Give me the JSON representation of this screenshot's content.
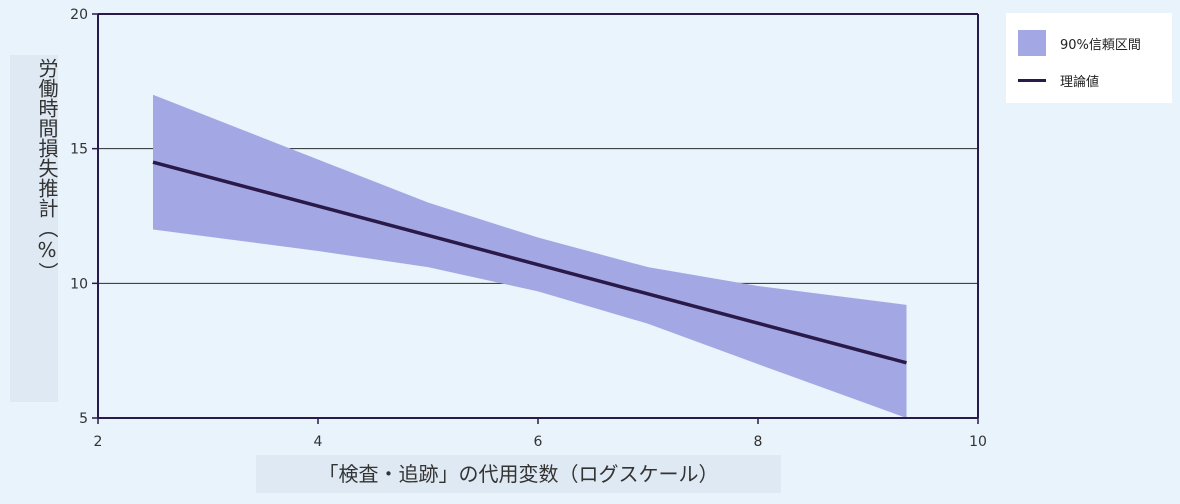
{
  "chart_data": {
    "type": "line",
    "title": "",
    "xlabel": "「検査・追跡」の代用変数（ログスケール）",
    "ylabel": "労働時間損失推計（%）",
    "xlim": [
      2,
      10
    ],
    "ylim": [
      5,
      20
    ],
    "x_ticks": [
      "2",
      "4",
      "6",
      "8",
      "10"
    ],
    "y_ticks": [
      "5",
      "10",
      "15",
      "20"
    ],
    "grid": "horizontal",
    "legend_position": "top-right-outside",
    "series": [
      {
        "name": "90%信頼区間",
        "kind": "band",
        "color": "#a3a8e4",
        "x": [
          2.5,
          4.0,
          5.0,
          6.0,
          7.0,
          8.0,
          9.35
        ],
        "lower": [
          12.0,
          11.2,
          10.6,
          9.7,
          8.5,
          7.0,
          5.0
        ],
        "upper": [
          17.0,
          14.6,
          13.0,
          11.7,
          10.6,
          9.9,
          9.2
        ]
      },
      {
        "name": "理論値",
        "kind": "line",
        "color": "#2a1a4a",
        "x": [
          2.5,
          9.35
        ],
        "y": [
          14.5,
          7.05
        ]
      }
    ]
  },
  "colors": {
    "background": "#e8f3fb",
    "axis": "#2a1a4a",
    "grid": "#2a2a2a",
    "label_box": "#dfe9f3"
  }
}
